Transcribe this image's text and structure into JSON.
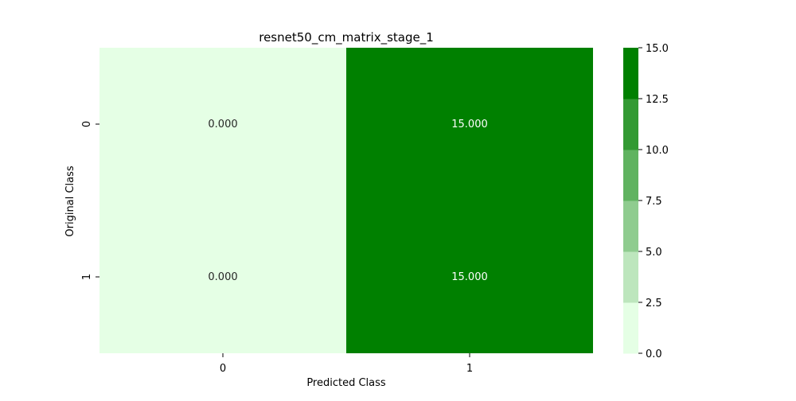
{
  "chart_data": {
    "type": "heatmap",
    "title": "resnet50_cm_matrix_stage_1",
    "xlabel": "Predicted Class",
    "ylabel": "Original Class",
    "x_categories": [
      "0",
      "1"
    ],
    "y_categories": [
      "0",
      "1"
    ],
    "values": [
      [
        0.0,
        15.0
      ],
      [
        0.0,
        15.0
      ]
    ],
    "cell_labels": [
      [
        "0.000",
        "15.000"
      ],
      [
        "0.000",
        "15.000"
      ]
    ],
    "colorbar": {
      "range": [
        0,
        15
      ],
      "ticks": [
        "0.0",
        "2.5",
        "5.0",
        "7.5",
        "10.0",
        "12.5",
        "15.0"
      ],
      "colors": [
        "#e5ffe5",
        "#bde6bd",
        "#8fcc8f",
        "#60b360",
        "#339a33",
        "#008000"
      ]
    },
    "annotation_colors": {
      "low": "#262626",
      "high": "#ffffff"
    }
  }
}
